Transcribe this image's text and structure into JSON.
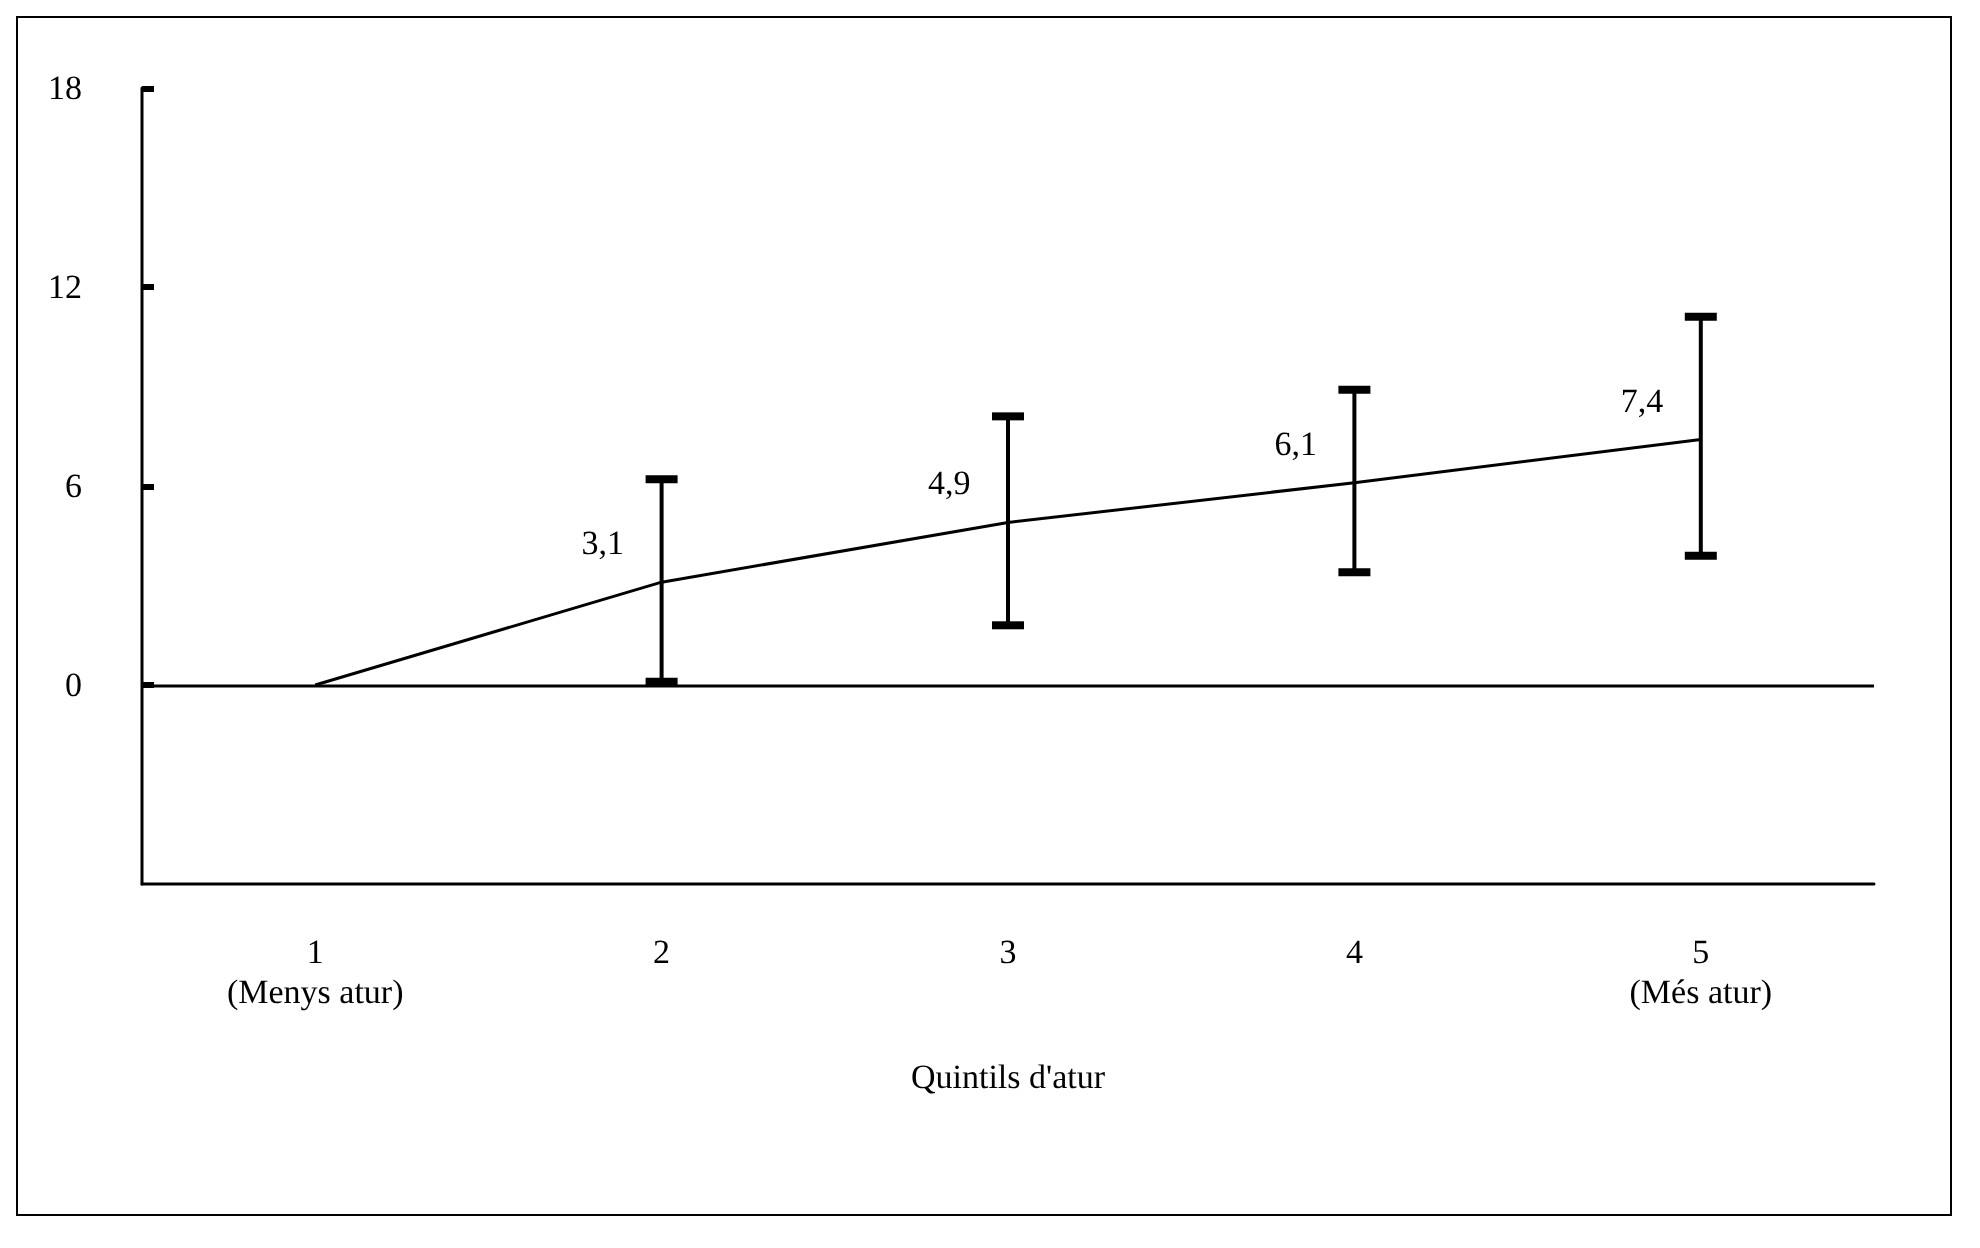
{
  "chart_data": {
    "type": "line",
    "xlabel": "Quintils d'atur",
    "categories": [
      "1\n(Menys atur)",
      "2",
      "3",
      "4",
      "5\n(Més atur)"
    ],
    "series": [
      {
        "color": "#000000",
        "values": [
          0,
          3.1,
          4.9,
          6.1,
          7.4
        ],
        "errors": [
          null,
          [
            0.1,
            6.2
          ],
          [
            1.8,
            8.1
          ],
          [
            3.4,
            8.9
          ],
          [
            3.9,
            11.1
          ]
        ],
        "value_labels": [
          null,
          "3,1",
          "4,9",
          "6,1",
          "7,4"
        ]
      }
    ],
    "ylim": [
      -6,
      18
    ],
    "yticks": [
      0,
      6,
      12,
      18
    ],
    "ref_lines": [
      {
        "axis": "y",
        "value": 0,
        "color": "#000000"
      }
    ],
    "line_style": "solid"
  }
}
